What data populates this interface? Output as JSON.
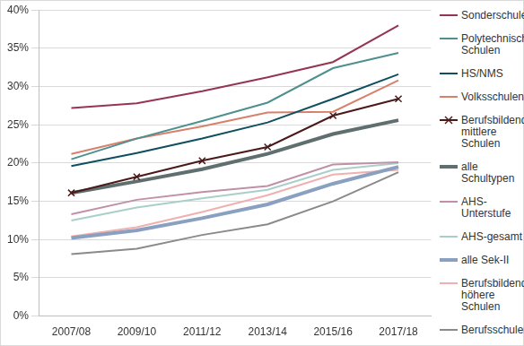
{
  "chart_data": {
    "type": "line",
    "categories": [
      "2007/08",
      "2009/10",
      "2011/12",
      "2013/14",
      "2015/16",
      "2017/18"
    ],
    "ylim": [
      0,
      40
    ],
    "yticks": [
      {
        "value": 0,
        "label": "0%"
      },
      {
        "value": 5,
        "label": "5%"
      },
      {
        "value": 10,
        "label": "10%"
      },
      {
        "value": 15,
        "label": "15%"
      },
      {
        "value": 20,
        "label": "20%"
      },
      {
        "value": 25,
        "label": "25%"
      },
      {
        "value": 30,
        "label": "30%"
      },
      {
        "value": 35,
        "label": "35%"
      },
      {
        "value": 40,
        "label": "40%"
      }
    ],
    "grid": true,
    "legend": "right",
    "series": [
      {
        "name": "Sonderschulen",
        "color": "#953553",
        "values": [
          27.2,
          27.8,
          29.4,
          31.2,
          33.2,
          38.0
        ]
      },
      {
        "name": "Polytechnische Schulen",
        "color": "#4f8f8f",
        "values": [
          20.5,
          23.2,
          25.5,
          27.9,
          32.4,
          34.4
        ]
      },
      {
        "name": "HS/NMS",
        "color": "#0f4f5f",
        "values": [
          19.6,
          21.3,
          23.2,
          25.3,
          28.4,
          31.6
        ]
      },
      {
        "name": "Volksschulen",
        "color": "#d8806a",
        "values": [
          21.2,
          23.2,
          24.8,
          26.6,
          26.7,
          30.8
        ]
      },
      {
        "name": "Berufsbildende mittlere Schulen",
        "color": "#4a1a1a",
        "marker": "x",
        "values": [
          16.1,
          18.2,
          20.3,
          22.1,
          26.2,
          28.4
        ]
      },
      {
        "name": "alle Schultypen",
        "color": "#5f6f6f",
        "line_style": "thick",
        "values": [
          16.1,
          17.6,
          19.2,
          21.2,
          23.8,
          25.6
        ]
      },
      {
        "name": "AHS-Unterstufe",
        "color": "#c090a8",
        "values": [
          13.3,
          15.2,
          16.2,
          17.0,
          19.8,
          20.1
        ]
      },
      {
        "name": "AHS-gesamt",
        "color": "#a8d0c8",
        "values": [
          12.5,
          14.2,
          15.4,
          16.5,
          19.1,
          20.0
        ]
      },
      {
        "name": "alle Sek-II",
        "color": "#8aa0c0",
        "line_style": "thick",
        "values": [
          10.2,
          11.2,
          12.8,
          14.6,
          17.3,
          19.5
        ]
      },
      {
        "name": "Berufsbildende höhere Schulen",
        "color": "#f0b0b0",
        "values": [
          10.4,
          11.6,
          13.6,
          15.8,
          18.5,
          19.1
        ]
      },
      {
        "name": "Berufsschulen",
        "color": "#8a8a8a",
        "values": [
          8.1,
          8.8,
          10.6,
          12.0,
          15.0,
          18.8
        ]
      }
    ]
  }
}
